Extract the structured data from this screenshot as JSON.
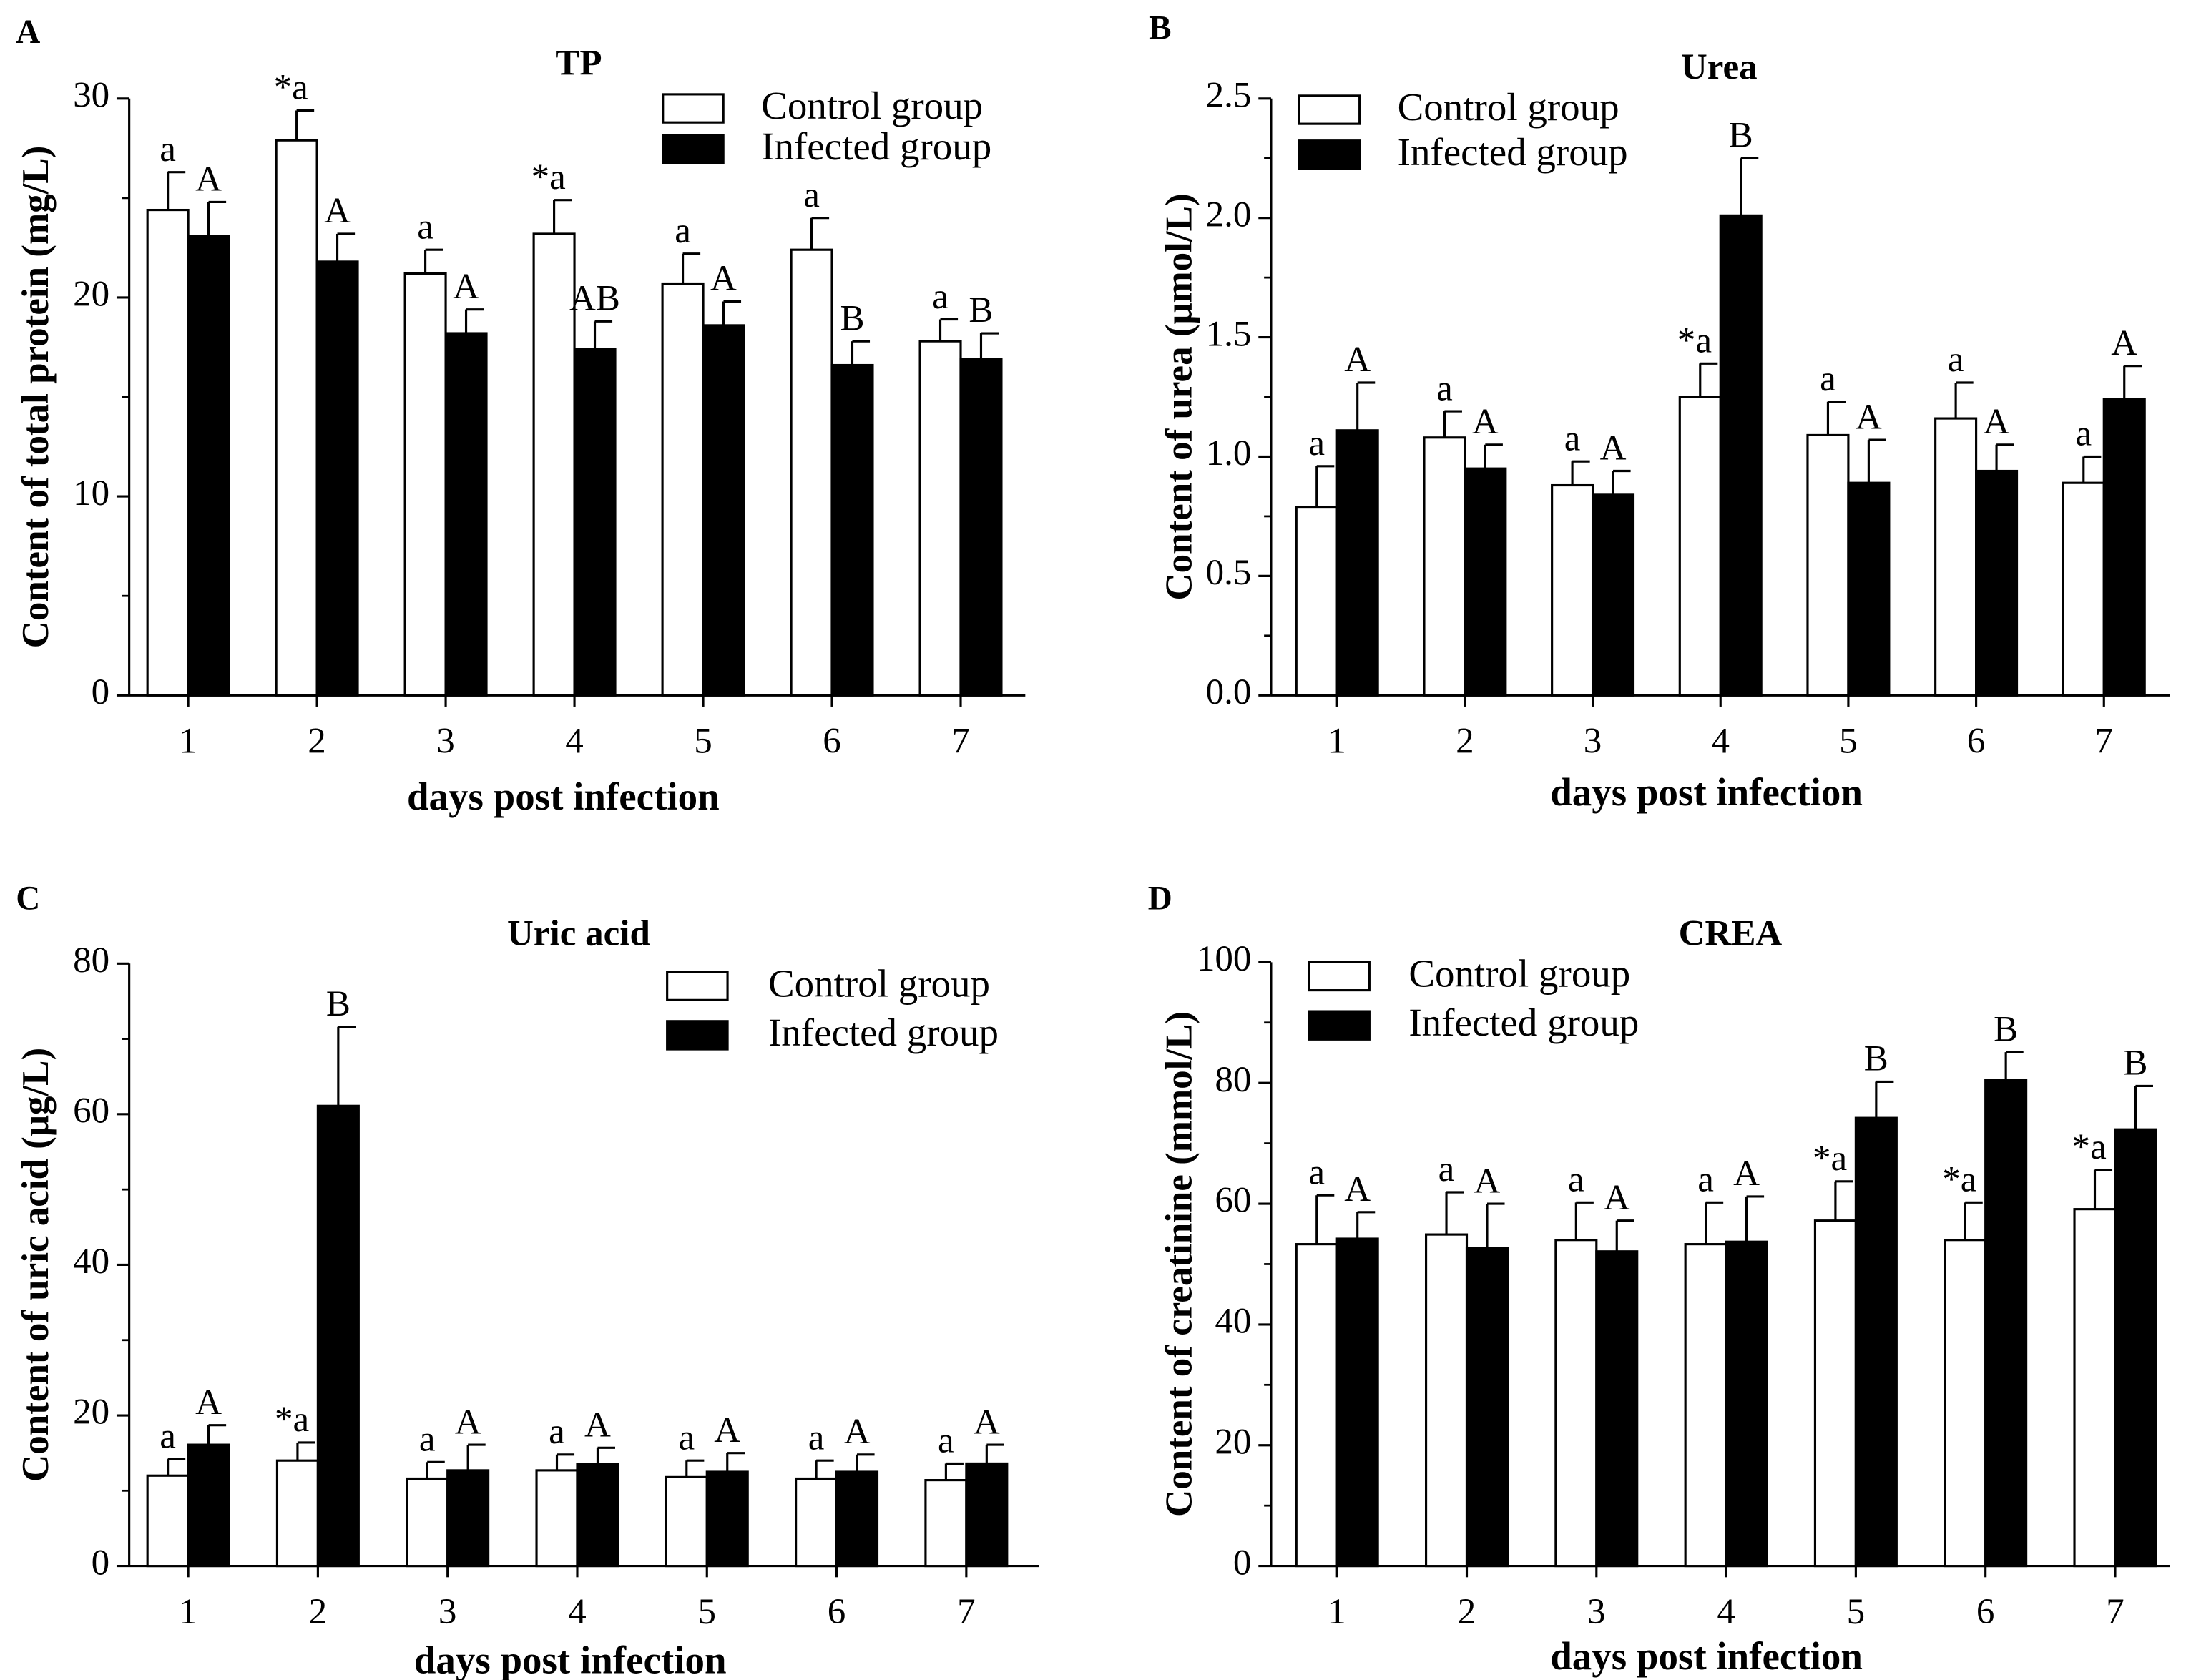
{
  "colors": {
    "control": "#ffffff",
    "infected": "#000000",
    "stroke": "#000000"
  },
  "chart_data": [
    {
      "panel": "A",
      "type": "bar",
      "title": "TP",
      "xlabel": "days post infection",
      "ylabel": "Content of total protein (mg/L)",
      "ylim": [
        0,
        30
      ],
      "yticks": [
        "0",
        "10",
        "20",
        "30"
      ],
      "ytick_values": [
        0,
        10,
        20,
        30
      ],
      "categories": [
        "1",
        "2",
        "3",
        "4",
        "5",
        "6",
        "7"
      ],
      "legend": [
        "Control group",
        "Infected group"
      ],
      "legend_position": "top-right",
      "series": [
        {
          "name": "Control group",
          "values": [
            24.4,
            27.9,
            21.2,
            23.2,
            20.7,
            22.4,
            17.8
          ],
          "errors": [
            1.9,
            1.5,
            1.2,
            1.7,
            1.5,
            1.6,
            1.1
          ],
          "labels": [
            "a",
            "*a",
            "a",
            "*a",
            "a",
            "a",
            "a"
          ]
        },
        {
          "name": "Infected group",
          "values": [
            23.1,
            21.8,
            18.2,
            17.4,
            18.6,
            16.6,
            16.9
          ],
          "errors": [
            1.7,
            1.4,
            1.2,
            1.4,
            1.2,
            1.2,
            1.3
          ],
          "labels": [
            "A",
            "A",
            "A",
            "AB",
            "A",
            "B",
            "B"
          ]
        }
      ]
    },
    {
      "panel": "B",
      "type": "bar",
      "title": "Urea",
      "xlabel": "days post infection",
      "ylabel": "Content of urea (μmol/L)",
      "ylim": [
        0,
        2.5
      ],
      "yticks": [
        "0.0",
        "0.5",
        "1.0",
        "1.5",
        "2.0",
        "2.5"
      ],
      "ytick_values": [
        0,
        0.5,
        1,
        1.5,
        2,
        2.5
      ],
      "categories": [
        "1",
        "2",
        "3",
        "4",
        "5",
        "6",
        "7"
      ],
      "legend": [
        "Control group",
        "Infected group"
      ],
      "legend_position": "top-left",
      "series": [
        {
          "name": "Control group",
          "values": [
            0.79,
            1.08,
            0.88,
            1.25,
            1.09,
            1.16,
            0.89
          ],
          "errors": [
            0.17,
            0.11,
            0.1,
            0.14,
            0.14,
            0.15,
            0.11
          ],
          "labels": [
            "a",
            "a",
            "a",
            "*a",
            "a",
            "a",
            "a"
          ]
        },
        {
          "name": "Infected group",
          "values": [
            1.11,
            0.95,
            0.84,
            2.01,
            0.89,
            0.94,
            1.24
          ],
          "errors": [
            0.2,
            0.1,
            0.1,
            0.24,
            0.18,
            0.11,
            0.14
          ],
          "labels": [
            "A",
            "A",
            "A",
            "B",
            "A",
            "A",
            "A"
          ]
        }
      ]
    },
    {
      "panel": "C",
      "type": "bar",
      "title": "Uric acid",
      "xlabel": "days post infection",
      "ylabel": "Content of uric acid (μg/L)",
      "ylim": [
        0,
        80
      ],
      "yticks": [
        "0",
        "20",
        "40",
        "60",
        "80"
      ],
      "ytick_values": [
        0,
        20,
        40,
        60,
        80
      ],
      "categories": [
        "1",
        "2",
        "3",
        "4",
        "5",
        "6",
        "7"
      ],
      "legend": [
        "Control group",
        "Infected group"
      ],
      "legend_position": "top-right",
      "series": [
        {
          "name": "Control group",
          "values": [
            12.0,
            14.0,
            11.6,
            12.7,
            11.8,
            11.6,
            11.4
          ],
          "errors": [
            2.2,
            2.4,
            2.2,
            2.1,
            2.2,
            2.4,
            2.2
          ],
          "labels": [
            "a",
            "*a",
            "a",
            "a",
            "a",
            "a",
            "a"
          ]
        },
        {
          "name": "Infected group",
          "values": [
            16.1,
            61.1,
            12.7,
            13.5,
            12.5,
            12.5,
            13.6
          ],
          "errors": [
            2.6,
            10.5,
            3.4,
            2.2,
            2.5,
            2.3,
            2.5
          ],
          "labels": [
            "A",
            "B",
            "A",
            "A",
            "A",
            "A",
            "A"
          ]
        }
      ]
    },
    {
      "panel": "D",
      "type": "bar",
      "title": "CREA",
      "xlabel": "days post infection",
      "ylabel": "Content of creatinine (mmol/L)",
      "ylim": [
        0,
        100
      ],
      "yticks": [
        "0",
        "20",
        "40",
        "60",
        "80",
        "100"
      ],
      "ytick_values": [
        0,
        20,
        40,
        60,
        80,
        100
      ],
      "categories": [
        "1",
        "2",
        "3",
        "4",
        "5",
        "6",
        "7"
      ],
      "legend": [
        "Control group",
        "Infected group"
      ],
      "legend_position": "top-left",
      "series": [
        {
          "name": "Control group",
          "values": [
            53.3,
            54.9,
            54.0,
            53.3,
            57.2,
            54.0,
            59.1
          ],
          "errors": [
            8.1,
            7.0,
            6.2,
            6.9,
            6.5,
            6.2,
            6.5
          ],
          "labels": [
            "a",
            "a",
            "a",
            "a",
            "*a",
            "*a",
            "*a"
          ]
        },
        {
          "name": "Infected group",
          "values": [
            54.2,
            52.6,
            52.1,
            53.7,
            74.2,
            80.5,
            72.3
          ],
          "errors": [
            4.4,
            7.4,
            5.1,
            7.5,
            6.0,
            4.6,
            7.2
          ],
          "labels": [
            "A",
            "A",
            "A",
            "A",
            "B",
            "B",
            "B"
          ]
        }
      ]
    }
  ]
}
